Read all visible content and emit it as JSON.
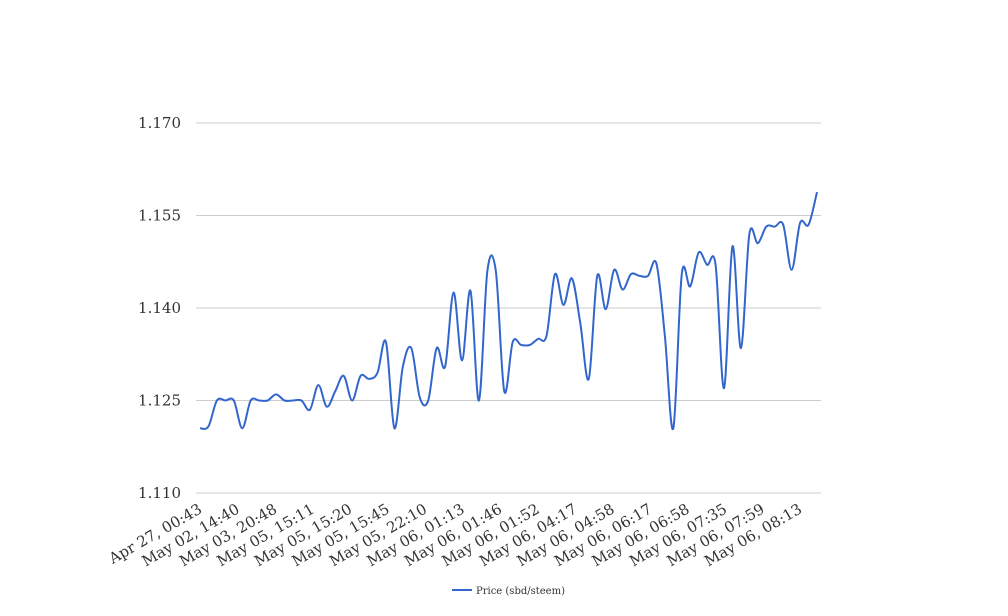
{
  "chart_data": {
    "type": "line",
    "title": "",
    "xlabel": "",
    "ylabel": "",
    "ylim": [
      1.11,
      1.17
    ],
    "yticks": [
      "1.110",
      "1.125",
      "1.140",
      "1.155",
      "1.170"
    ],
    "ytick_values": [
      1.11,
      1.125,
      1.14,
      1.155,
      1.17
    ],
    "grid": true,
    "legend_position": "bottom-center",
    "x_tick_labels": [
      "Apr 27, 00:43",
      "May 02, 14:40",
      "May 03, 20:48",
      "May 05, 15:11",
      "May 05, 15:20",
      "May 05, 15:45",
      "May 05, 22:10",
      "May 06, 01:13",
      "May 06, 01:46",
      "May 06, 01:52",
      "May 06, 04:17",
      "May 06, 04:58",
      "May 06, 06:17",
      "May 06, 06:58",
      "May 06, 07:35",
      "May 06, 07:59",
      "May 06, 08:13"
    ],
    "series": [
      {
        "name": "Price (sbd/steem)",
        "color": "#3366cc",
        "values": [
          1.1205,
          1.1208,
          1.125,
          1.125,
          1.125,
          1.1205,
          1.125,
          1.125,
          1.125,
          1.126,
          1.125,
          1.125,
          1.125,
          1.1235,
          1.1275,
          1.124,
          1.1265,
          1.129,
          1.125,
          1.129,
          1.1285,
          1.1295,
          1.1345,
          1.1205,
          1.1305,
          1.1335,
          1.1255,
          1.125,
          1.1335,
          1.1305,
          1.1425,
          1.1315,
          1.1428,
          1.125,
          1.146,
          1.146,
          1.1265,
          1.1345,
          1.134,
          1.134,
          1.135,
          1.1355,
          1.1455,
          1.1405,
          1.1448,
          1.1375,
          1.1285,
          1.1452,
          1.1398,
          1.1462,
          1.143,
          1.1455,
          1.1452,
          1.1452,
          1.1472,
          1.1355,
          1.1205,
          1.1455,
          1.1435,
          1.149,
          1.147,
          1.147,
          1.127,
          1.15,
          1.1335,
          1.152,
          1.1505,
          1.1532,
          1.1532,
          1.1535,
          1.1462,
          1.1538,
          1.1535,
          1.1588
        ]
      }
    ]
  },
  "legend": {
    "label": "Price (sbd/steem)"
  }
}
